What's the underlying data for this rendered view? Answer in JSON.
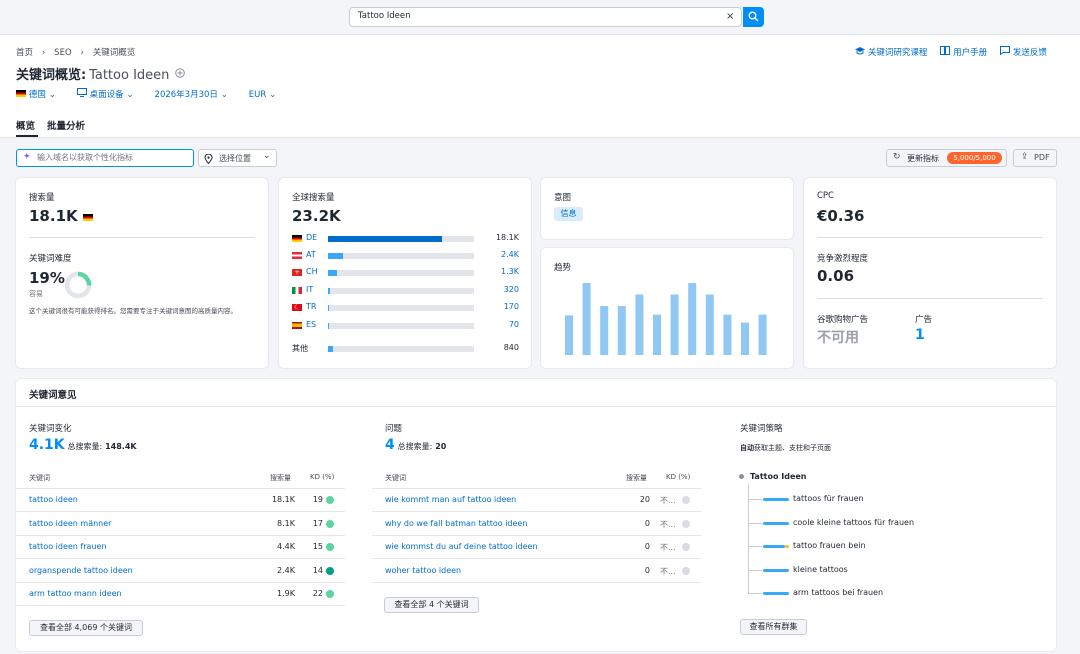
{
  "search": {
    "value": "Tattoo Ideen",
    "clear": "×"
  },
  "breadcrumb": [
    "首页",
    "SEO",
    "关键词概览"
  ],
  "header": {
    "title": "关键词概览:",
    "keyword": "Tattoo Ideen",
    "links": {
      "course": "关键词研究课程",
      "manual": "用户手册",
      "feedback": "发送反馈"
    },
    "filters": {
      "country": "德国",
      "device": "桌面设备",
      "date": "2026年3月30日",
      "currency": "EUR"
    },
    "tabs": [
      "概览",
      "批量分析"
    ]
  },
  "toolbar": {
    "domain_placeholder": "输入域名以获取个性化指标",
    "location": "选择位置",
    "update": "更新指标",
    "update_badge": "5,000/5,000",
    "pdf": "PDF"
  },
  "volume_card": {
    "label": "搜索量",
    "value": "18.1K",
    "kd_label": "关键词难度",
    "kd_value": "19%",
    "kd_level": "容易",
    "kd_percent": 19,
    "kd_note": "这个关键词很有可能获得排名。您需要专注于关键词意图的高质量内容。"
  },
  "global_card": {
    "label": "全球搜索量",
    "value": "23.2K",
    "countries": [
      {
        "code": "DE",
        "value": "18.1K",
        "share": 0.78
      },
      {
        "code": "AT",
        "value": "2.4K",
        "share": 0.1
      },
      {
        "code": "CH",
        "value": "1.3K",
        "share": 0.06
      },
      {
        "code": "IT",
        "value": "320",
        "share": 0.015
      },
      {
        "code": "TR",
        "value": "170",
        "share": 0.01
      },
      {
        "code": "ES",
        "value": "70",
        "share": 0.008
      }
    ],
    "other_label": "其他",
    "other_value": "840",
    "other_share": 0.036
  },
  "intent_card": {
    "label": "意图",
    "badge": "信息"
  },
  "trend_card": {
    "label": "趋势",
    "values": [
      0.55,
      1.0,
      0.68,
      0.68,
      0.84,
      0.56,
      0.84,
      1.0,
      0.84,
      0.56,
      0.45,
      0.56
    ]
  },
  "cpc_card": {
    "label": "CPC",
    "value": "€0.36",
    "competition_label": "竞争激烈程度",
    "competition_value": "0.06",
    "shopping_label": "谷歌购物广告",
    "shopping_value": "不可用",
    "ads_label": "广告",
    "ads_value": "1"
  },
  "ideas": {
    "title": "关键词意见",
    "variations": {
      "label": "关键词变化",
      "count": "4.1K",
      "total_label": "总搜索量:",
      "total_value": "148.4K",
      "cols": [
        "关键词",
        "搜索量",
        "KD (%)"
      ],
      "rows": [
        {
          "kw": "tattoo ideen",
          "vol": "18.1K",
          "kd": "19",
          "color": "#59d59f"
        },
        {
          "kw": "tattoo ideen männer",
          "vol": "8.1K",
          "kd": "17",
          "color": "#59d59f"
        },
        {
          "kw": "tattoo ideen frauen",
          "vol": "4.4K",
          "kd": "15",
          "color": "#59d59f"
        },
        {
          "kw": "organspende tattoo ideen",
          "vol": "2.4K",
          "kd": "14",
          "color": "#009f81"
        },
        {
          "kw": "arm tattoo mann ideen",
          "vol": "1.9K",
          "kd": "22",
          "color": "#59d59f"
        }
      ],
      "view_all": "查看全部 4,069 个关键词"
    },
    "questions": {
      "label": "问题",
      "count": "4",
      "total_label": "总搜索量:",
      "total_value": "20",
      "cols": [
        "关键词",
        "搜索量",
        "KD (%)"
      ],
      "rows": [
        {
          "kw": "wie kommt man auf tattoo ideen",
          "vol": "20",
          "kd": "不...",
          "color": "#d9dce3"
        },
        {
          "kw": "why do we fall batman tattoo ideen",
          "vol": "0",
          "kd": "不...",
          "color": "#d9dce3"
        },
        {
          "kw": "wie kommst du auf deine tattoo ideen",
          "vol": "0",
          "kd": "不...",
          "color": "#d9dce3"
        },
        {
          "kw": "woher tattoo ideen",
          "vol": "0",
          "kd": "不...",
          "color": "#d9dce3"
        }
      ],
      "view_all": "查看全部 4 个关键词"
    },
    "strategy": {
      "label": "关键词策略",
      "desc_bold": "自动",
      "desc_rest": "获取主题、支柱和子页面",
      "root": "Tattoo Ideen",
      "items": [
        "tattoos für frauen",
        "coole kleine tattoos für frauen",
        "tattoo frauen bein",
        "kleine tattoos",
        "arm tattoos bei frauen"
      ],
      "view_all": "查看所有群集"
    }
  }
}
